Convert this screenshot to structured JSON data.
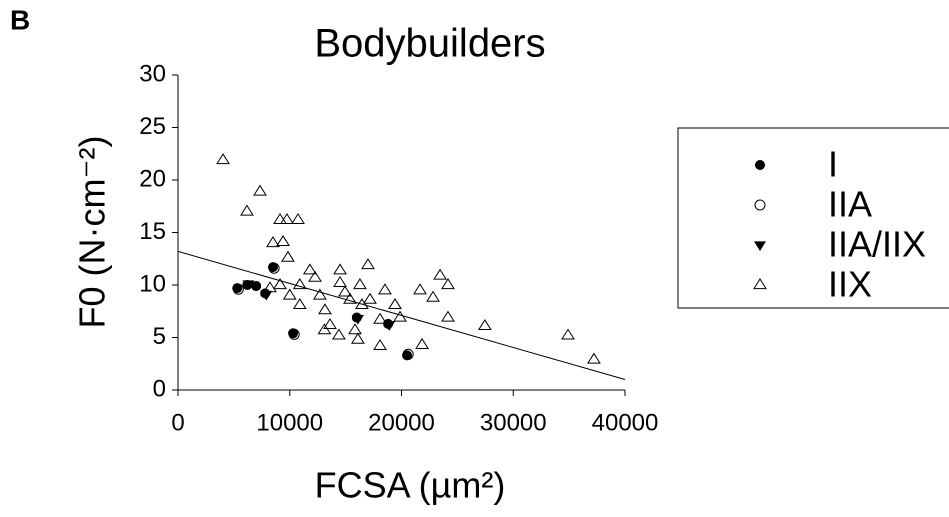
{
  "chart_data": {
    "type": "scatter",
    "panel_label": "B",
    "title": "Bodybuilders",
    "x_label": "FCSA (µm²)",
    "y_label": "F0 (N·cm⁻²)",
    "xlim": [
      0,
      40000
    ],
    "ylim": [
      0,
      30
    ],
    "xticks": [
      0,
      10000,
      20000,
      30000,
      40000
    ],
    "yticks": [
      0,
      5,
      10,
      15,
      20,
      25,
      30
    ],
    "series": [
      {
        "name": "I",
        "marker": "filled-circle",
        "color": "#000000",
        "x": [
          5300,
          6200,
          7000,
          7800,
          8500,
          10300,
          16000,
          18800,
          20500
        ],
        "values": [
          9.7,
          10,
          9.9,
          9.2,
          11.7,
          5.4,
          6.9,
          6.3,
          3.3
        ]
      },
      {
        "name": "IIA",
        "marker": "open-circle",
        "color": "#000000",
        "x": [
          5400,
          8600,
          10400,
          20600
        ],
        "values": [
          9.6,
          11.6,
          5.3,
          3.4
        ]
      },
      {
        "name": "IIA/IIX",
        "marker": "filled-triangle-down",
        "color": "#000000",
        "x": [
          6300,
          7900,
          16100,
          18900
        ],
        "values": [
          10.1,
          9.1,
          6.8,
          6.2
        ]
      },
      {
        "name": "IIX",
        "marker": "open-triangle-up",
        "color": "#000000",
        "x": [
          4030,
          6170,
          7340,
          8500,
          9130,
          9750,
          10740,
          9400,
          9840,
          9130,
          10000,
          10900,
          11800,
          12260,
          12700,
          13150,
          13600,
          14500,
          14940,
          15840,
          16280,
          16460,
          17000,
          17180,
          18080,
          18520,
          19420,
          19870,
          21660,
          22820,
          23450,
          24160,
          24160,
          21840,
          18080,
          16100,
          14400,
          13100,
          27460,
          34900,
          37220,
          14500,
          10900,
          8230,
          15390
        ],
        "values": [
          21.9,
          17.0,
          18.9,
          14.0,
          16.2,
          16.2,
          16.2,
          14.1,
          12.6,
          10.0,
          9.0,
          10.0,
          11.4,
          10.7,
          9.0,
          7.6,
          6.2,
          11.4,
          9.3,
          5.7,
          10.0,
          8.1,
          11.9,
          8.6,
          6.7,
          9.5,
          8.1,
          6.9,
          9.5,
          8.8,
          10.9,
          10.0,
          6.9,
          4.3,
          4.2,
          4.8,
          5.2,
          5.7,
          6.1,
          5.2,
          2.9,
          10.2,
          8.1,
          9.7,
          8.6
        ]
      }
    ],
    "trendline": {
      "x": [
        0,
        40000
      ],
      "values": [
        13.2,
        1.0
      ]
    }
  }
}
